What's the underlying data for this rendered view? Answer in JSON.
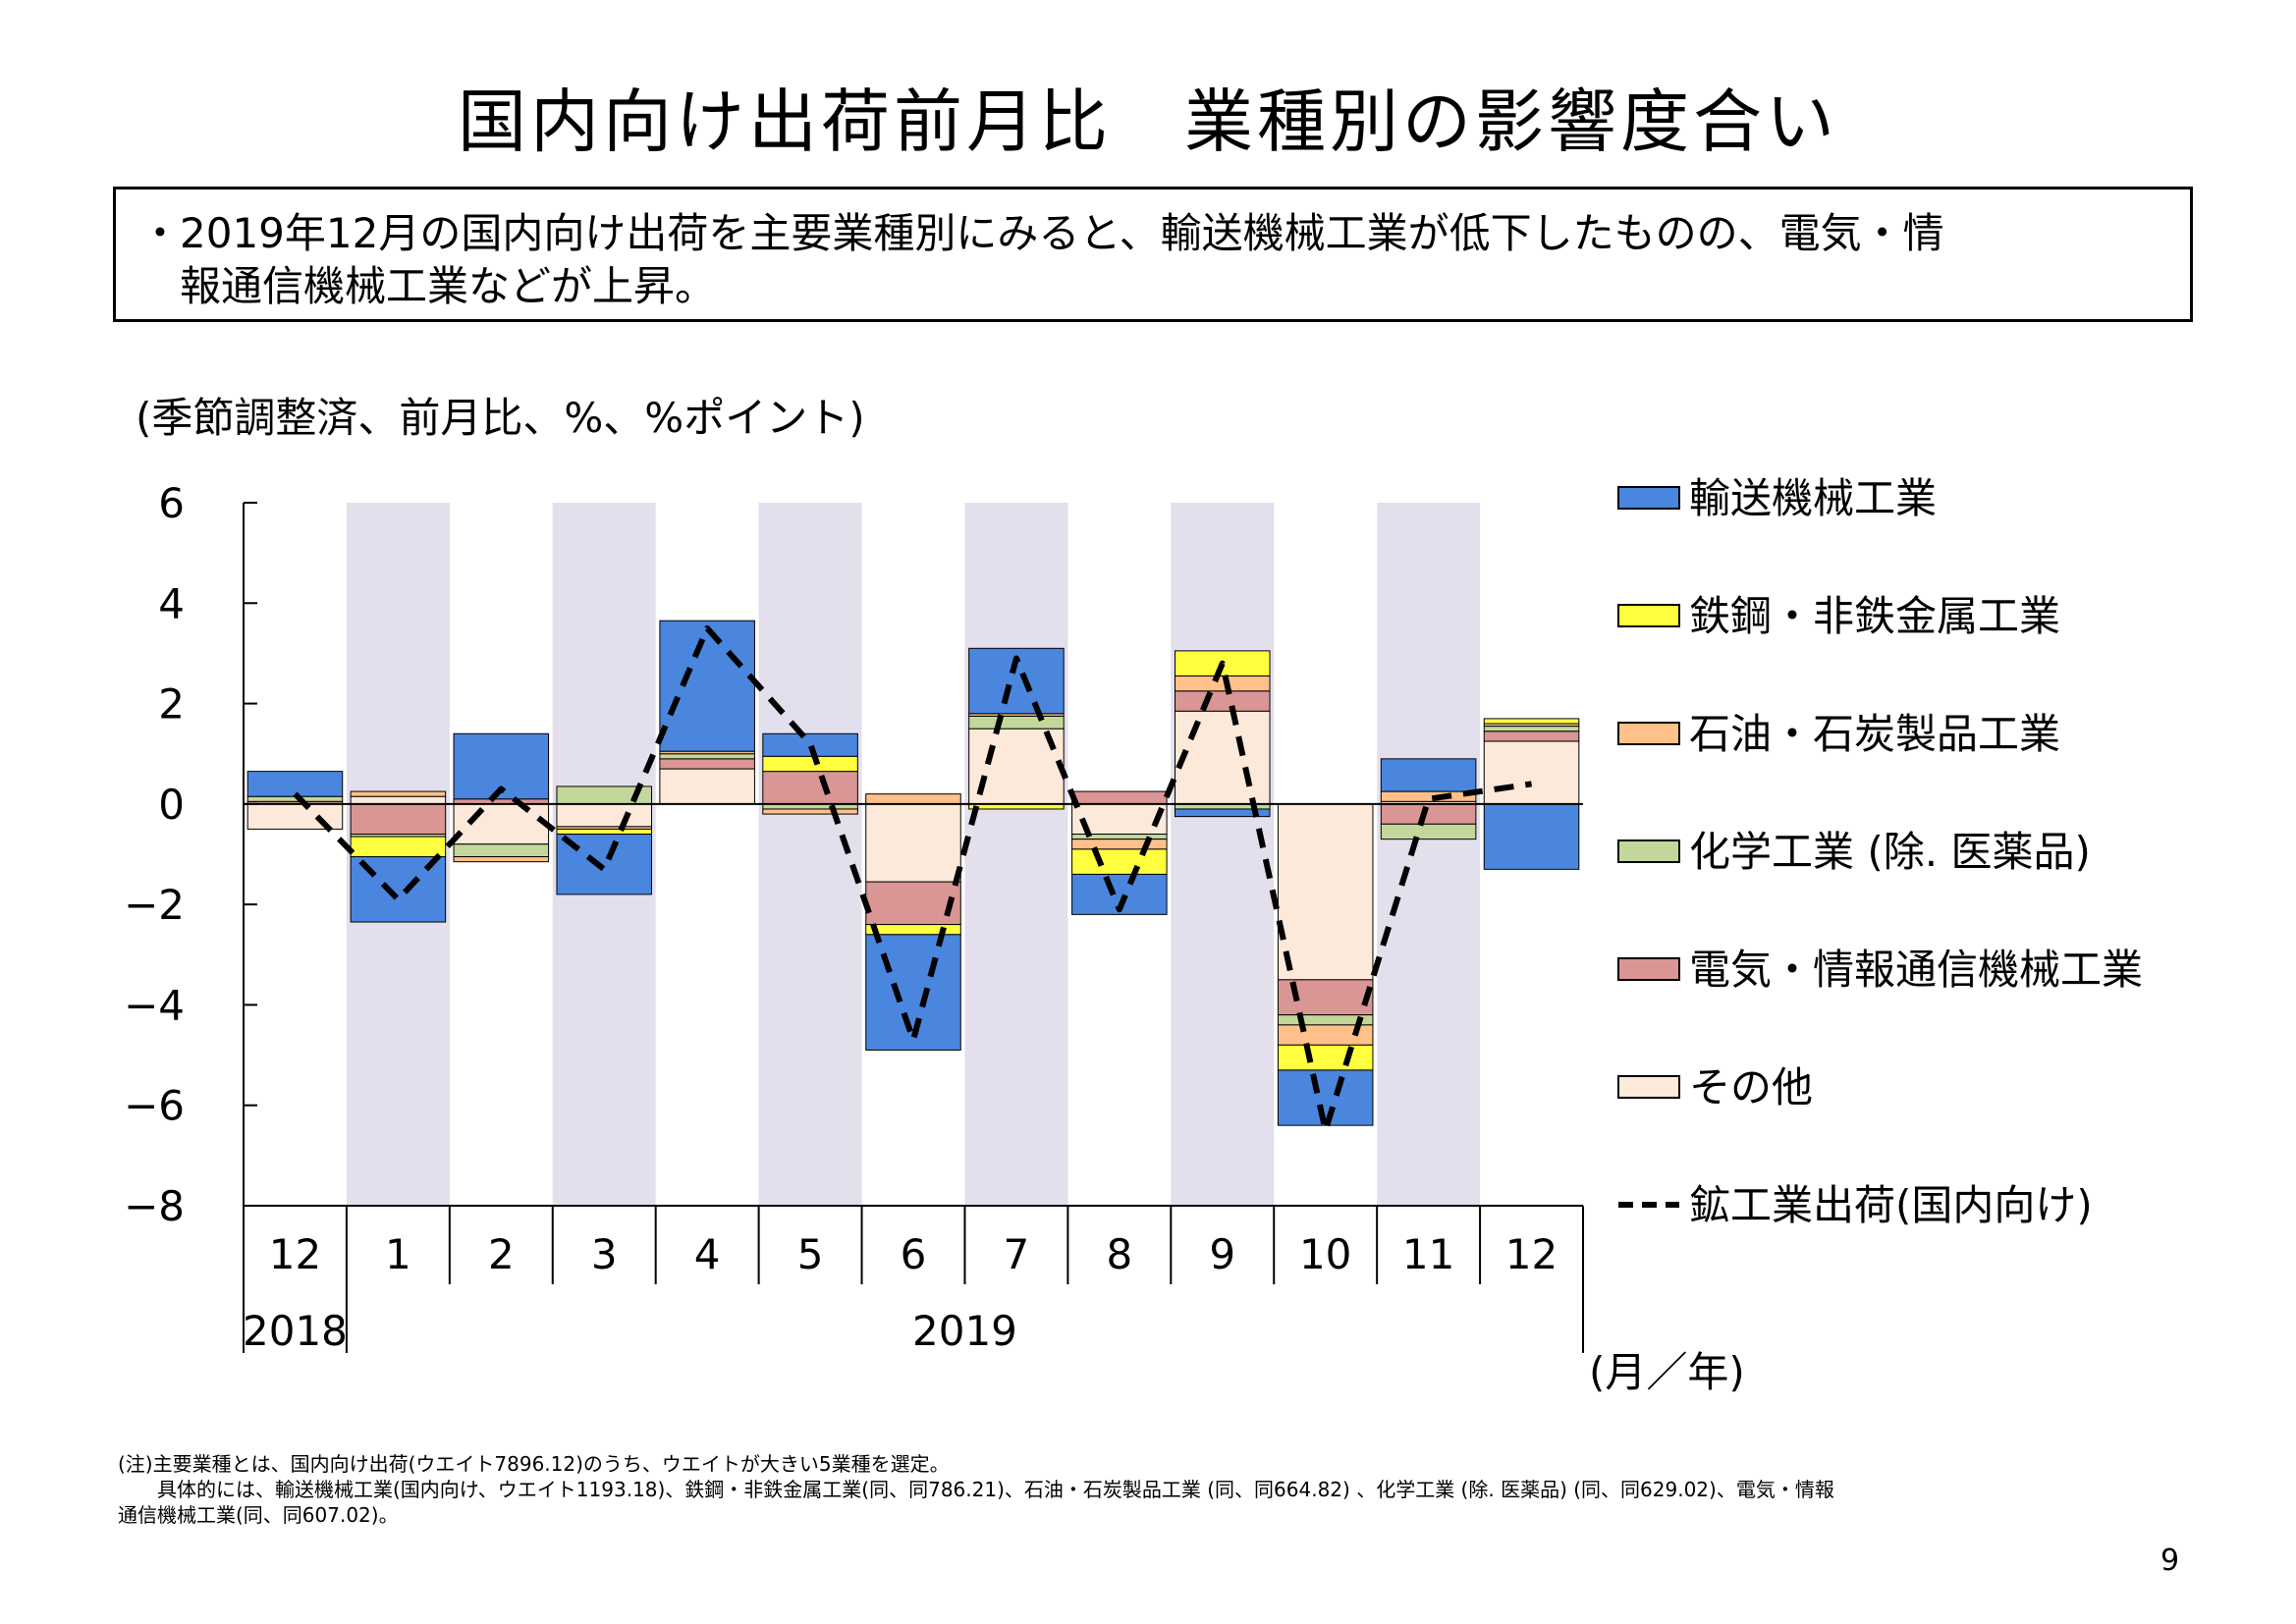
{
  "title": "国内向け出荷前月比　業種別の影響度合い",
  "summary": {
    "bullet": "・",
    "line1": "2019年12月の国内向け出荷を主要業種別にみると、輸送機械工業が低下したものの、電気・情",
    "line2": "報通信機械工業などが上昇。"
  },
  "notes": {
    "line1": "(注)主要業種とは、国内向け出荷(ウエイト7896.12)のうち、ウエイトが大きい5業種を選定。",
    "line2": "　　具体的には、輸送機械工業(国内向け、ウエイト1193.18)、鉄鋼・非鉄金属工業(同、同786.21)、石油・石炭製品工業 (同、同664.82) 、化学工業 (除. 医薬品) (同、同629.02)、電気・情報",
    "line3": "通信機械工業(同、同607.02)。"
  },
  "page_number": "9",
  "colors": {
    "transport": "#4A86DE",
    "steel": "#FFFF40",
    "petroleum": "#FFC08A",
    "chemical": "#C4D79B",
    "electrical": "#DA9694",
    "other": "#FDE9D9",
    "shade": "#E4DFEC",
    "line": "#000000"
  },
  "chart_data": {
    "type": "bar",
    "stacked": true,
    "unit_label": "(季節調整済、前月比、%、%ポイント)",
    "xlabel": "(月／年)",
    "ylim": [
      -8,
      6
    ],
    "yticks": [
      6,
      4,
      2,
      0,
      -2,
      -4,
      -6,
      -8
    ],
    "ytick_labels": [
      "6",
      "4",
      "2",
      "0",
      "−2",
      "−4",
      "−6",
      "−8"
    ],
    "grid": false,
    "legend_position": "right",
    "categories": [
      "12",
      "1",
      "2",
      "3",
      "4",
      "5",
      "6",
      "7",
      "8",
      "9",
      "10",
      "11",
      "12"
    ],
    "year_groups": [
      {
        "label": "2018",
        "start": 0,
        "end": 0
      },
      {
        "label": "2019",
        "start": 1,
        "end": 12
      }
    ],
    "shaded_categories": [
      1,
      3,
      5,
      7,
      9,
      11
    ],
    "series": [
      {
        "key": "other",
        "name": "その他",
        "values": [
          -0.5,
          0.15,
          -0.8,
          -0.45,
          0.7,
          0.0,
          -1.55,
          1.5,
          -0.6,
          1.85,
          -3.5,
          0.05,
          1.25
        ]
      },
      {
        "key": "electrical",
        "name": "電気・情報通信機械工業",
        "values": [
          0.05,
          -0.6,
          0.1,
          0.0,
          0.2,
          0.65,
          -0.85,
          0.0,
          0.25,
          0.4,
          -0.7,
          -0.4,
          0.2
        ]
      },
      {
        "key": "chemical",
        "name": "化学工業 (除. 医薬品)",
        "values": [
          0.1,
          -0.05,
          -0.25,
          0.35,
          0.1,
          -0.1,
          0.0,
          0.25,
          -0.1,
          -0.1,
          -0.2,
          -0.3,
          0.1
        ]
      },
      {
        "key": "petroleum",
        "name": "石油・石炭製品工業",
        "values": [
          0.0,
          0.1,
          -0.1,
          -0.05,
          0.05,
          -0.1,
          0.2,
          0.05,
          -0.2,
          0.3,
          -0.4,
          0.2,
          0.05
        ]
      },
      {
        "key": "steel",
        "name": "鉄鋼・非鉄金属工業",
        "values": [
          0.0,
          -0.4,
          0.0,
          -0.1,
          0.0,
          0.3,
          -0.2,
          -0.1,
          -0.5,
          0.5,
          -0.5,
          0.0,
          0.1
        ]
      },
      {
        "key": "transport",
        "name": "輸送機械工業",
        "values": [
          0.5,
          -1.3,
          1.3,
          -1.2,
          2.6,
          0.45,
          -2.3,
          1.3,
          -0.8,
          -0.15,
          -1.1,
          0.65,
          -1.3
        ]
      }
    ],
    "line": {
      "key": "line",
      "name": "鉱工業出荷(国内向け)",
      "style": "dashed",
      "values": [
        0.2,
        -1.9,
        0.3,
        -1.3,
        3.5,
        1.2,
        -4.7,
        2.9,
        -2.1,
        2.8,
        -6.5,
        0.1,
        0.4
      ]
    },
    "legend_order": [
      "transport",
      "steel",
      "petroleum",
      "chemical",
      "electrical",
      "other",
      "line"
    ]
  }
}
